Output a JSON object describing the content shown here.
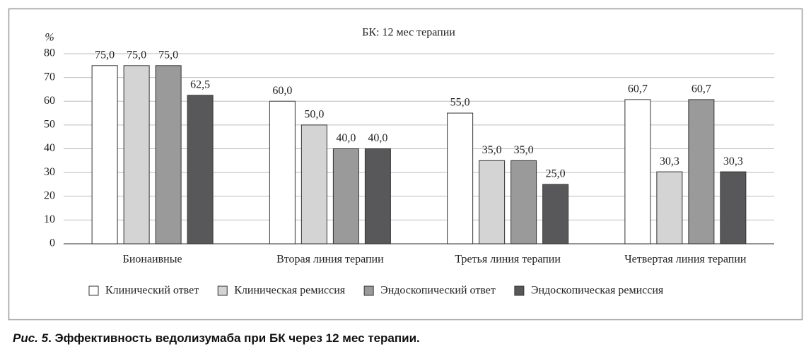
{
  "chart_data": {
    "type": "bar",
    "title": "БК: 12 мес терапии",
    "y_unit": "%",
    "categories": [
      "Бионаивные",
      "Вторая линия терапии",
      "Третья линия терапии",
      "Четвертая линия терапии"
    ],
    "series": [
      {
        "name": "Клинический ответ",
        "color": "#ffffff",
        "values": [
          75,
          60,
          55,
          60.7
        ],
        "value_labels": [
          "75,0",
          "60,0",
          "55,0",
          "60,7"
        ]
      },
      {
        "name": "Клиническая ремиссия",
        "color": "#d4d4d4",
        "values": [
          75,
          50,
          35,
          30.3
        ],
        "value_labels": [
          "75,0",
          "50,0",
          "35,0",
          "30,3"
        ]
      },
      {
        "name": "Эндоскопический ответ",
        "color": "#9a9a9a",
        "values": [
          75,
          40,
          35,
          60.7
        ],
        "value_labels": [
          "75,0",
          "40,0",
          "35,0",
          "60,7"
        ]
      },
      {
        "name": "Эндоскопическая ремиссия",
        "color": "#58585a",
        "values": [
          62.5,
          40,
          25,
          30.3
        ],
        "value_labels": [
          "62,5",
          "40,0",
          "25,0",
          "30,3"
        ]
      }
    ],
    "ylim": [
      0,
      80
    ],
    "yticks": [
      0,
      10,
      20,
      30,
      40,
      50,
      60,
      70,
      80
    ],
    "grid": true,
    "legend": "bottom"
  },
  "caption": {
    "label": "Рис. 5",
    "text": ". Эффективность ведолизумаба при БК через 12 мес терапии."
  }
}
